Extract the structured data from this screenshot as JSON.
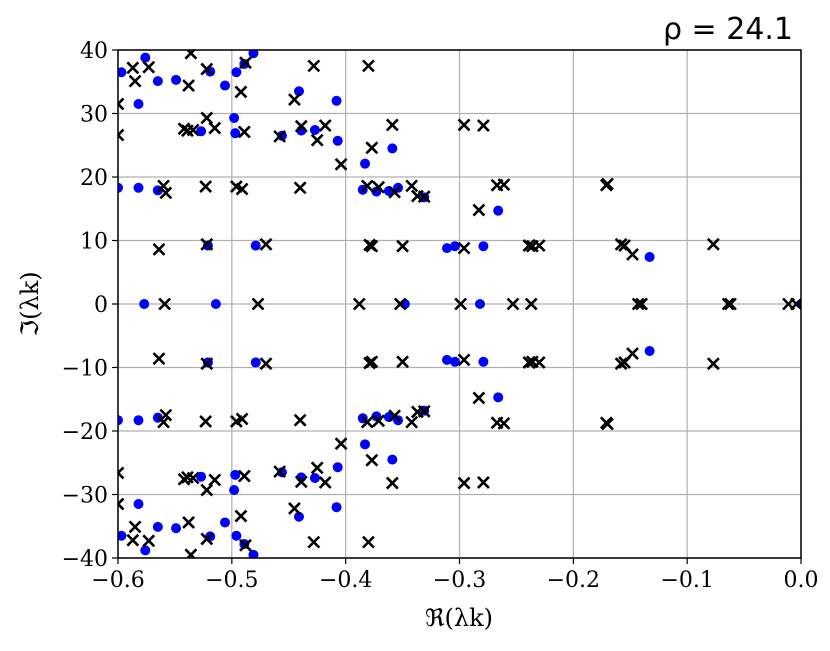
{
  "chart_data": {
    "type": "scatter",
    "title": "ρ = 24.1",
    "xlabel": "ℜ(λk)",
    "ylabel": "ℑ(λk)",
    "xlim": [
      -0.6,
      0.0
    ],
    "ylim": [
      -40,
      40
    ],
    "grid": true,
    "x_ticks": [
      -0.6,
      -0.5,
      -0.4,
      -0.3,
      -0.2,
      -0.1,
      0.0
    ],
    "x_tick_labels": [
      "−0.6",
      "−0.5",
      "−0.4",
      "−0.3",
      "−0.2",
      "−0.1",
      "0.0"
    ],
    "y_ticks": [
      -40,
      -30,
      -20,
      -10,
      0,
      10,
      20,
      30,
      40
    ],
    "y_tick_labels": [
      "−40",
      "−30",
      "−20",
      "−10",
      "0",
      "10",
      "20",
      "30",
      "40"
    ],
    "series": [
      {
        "marker": "circle",
        "color": "#0000ff",
        "points_upper": [
          [
            -0.597,
            36.5
          ],
          [
            -0.582,
            31.5
          ],
          [
            -0.576,
            38.8
          ],
          [
            -0.565,
            35.1
          ],
          [
            -0.549,
            35.3
          ],
          [
            -0.527,
            27.2
          ],
          [
            -0.519,
            36.6
          ],
          [
            -0.506,
            34.4
          ],
          [
            -0.498,
            29.3
          ],
          [
            -0.497,
            26.9
          ],
          [
            -0.496,
            36.5
          ],
          [
            -0.489,
            37.8
          ],
          [
            -0.481,
            39.5
          ],
          [
            -0.456,
            26.5
          ],
          [
            -0.441,
            33.5
          ],
          [
            -0.439,
            27.3
          ],
          [
            -0.427,
            27.4
          ],
          [
            -0.408,
            32.0
          ],
          [
            -0.407,
            25.7
          ],
          [
            -0.383,
            22.1
          ],
          [
            -0.359,
            24.5
          ],
          [
            -0.6,
            18.3
          ],
          [
            -0.582,
            18.3
          ],
          [
            -0.565,
            17.9
          ],
          [
            -0.385,
            18.0
          ],
          [
            -0.373,
            17.7
          ],
          [
            -0.362,
            17.8
          ],
          [
            -0.354,
            18.3
          ],
          [
            -0.331,
            16.8
          ],
          [
            -0.266,
            14.7
          ],
          [
            -0.521,
            9.2
          ],
          [
            -0.479,
            9.2
          ],
          [
            -0.311,
            8.8
          ],
          [
            -0.304,
            9.1
          ],
          [
            -0.279,
            9.1
          ],
          [
            -0.133,
            7.4
          ],
          [
            -0.577,
            0.0
          ],
          [
            -0.514,
            0.0
          ],
          [
            -0.348,
            0.0
          ],
          [
            -0.282,
            0.0
          ],
          [
            0.0,
            0.0
          ]
        ]
      },
      {
        "marker": "x",
        "color": "#000000",
        "points_upper": [
          [
            -0.6,
            31.5
          ],
          [
            -0.6,
            26.6
          ],
          [
            -0.587,
            37.2
          ],
          [
            -0.585,
            35.1
          ],
          [
            -0.573,
            37.3
          ],
          [
            -0.542,
            27.6
          ],
          [
            -0.539,
            27.3
          ],
          [
            -0.538,
            34.4
          ],
          [
            -0.536,
            39.5
          ],
          [
            -0.534,
            27.4
          ],
          [
            -0.522,
            37.0
          ],
          [
            -0.522,
            29.3
          ],
          [
            -0.515,
            27.7
          ],
          [
            -0.492,
            33.4
          ],
          [
            -0.489,
            27.1
          ],
          [
            -0.488,
            38.0
          ],
          [
            -0.458,
            26.4
          ],
          [
            -0.445,
            32.2
          ],
          [
            -0.439,
            28.0
          ],
          [
            -0.428,
            37.5
          ],
          [
            -0.425,
            25.8
          ],
          [
            -0.418,
            28.1
          ],
          [
            -0.404,
            22.0
          ],
          [
            -0.377,
            24.6
          ],
          [
            -0.38,
            37.5
          ],
          [
            -0.359,
            28.2
          ],
          [
            -0.296,
            28.2
          ],
          [
            -0.279,
            28.1
          ],
          [
            -0.56,
            18.6
          ],
          [
            -0.558,
            17.5
          ],
          [
            -0.523,
            18.5
          ],
          [
            -0.496,
            18.5
          ],
          [
            -0.491,
            18.1
          ],
          [
            -0.44,
            18.3
          ],
          [
            -0.381,
            18.6
          ],
          [
            -0.371,
            18.4
          ],
          [
            -0.357,
            17.6
          ],
          [
            -0.342,
            18.6
          ],
          [
            -0.337,
            17.0
          ],
          [
            -0.331,
            16.9
          ],
          [
            -0.267,
            18.7
          ],
          [
            -0.261,
            18.8
          ],
          [
            -0.283,
            14.8
          ],
          [
            -0.171,
            18.7
          ],
          [
            -0.17,
            18.9
          ],
          [
            -0.564,
            8.6
          ],
          [
            -0.522,
            9.4
          ],
          [
            -0.47,
            9.4
          ],
          [
            -0.379,
            9.3
          ],
          [
            -0.377,
            9.1
          ],
          [
            -0.35,
            9.1
          ],
          [
            -0.296,
            8.8
          ],
          [
            -0.239,
            9.2
          ],
          [
            -0.236,
            9.1
          ],
          [
            -0.23,
            9.2
          ],
          [
            -0.158,
            9.4
          ],
          [
            -0.155,
            9.2
          ],
          [
            -0.148,
            7.8
          ],
          [
            -0.077,
            9.4
          ],
          [
            -0.559,
            0.0
          ],
          [
            -0.477,
            0.0
          ],
          [
            -0.388,
            0.0
          ],
          [
            -0.352,
            0.0
          ],
          [
            -0.299,
            0.0
          ],
          [
            -0.253,
            0.0
          ],
          [
            -0.237,
            0.0
          ],
          [
            -0.143,
            0.0
          ],
          [
            -0.14,
            0.0
          ],
          [
            -0.064,
            0.0
          ],
          [
            -0.062,
            0.0
          ],
          [
            -0.011,
            0.0
          ],
          [
            -0.004,
            0.0
          ]
        ]
      }
    ],
    "symmetry": "conjugate pairs: each upper point (x, y) is also plotted at (x, −y)"
  }
}
